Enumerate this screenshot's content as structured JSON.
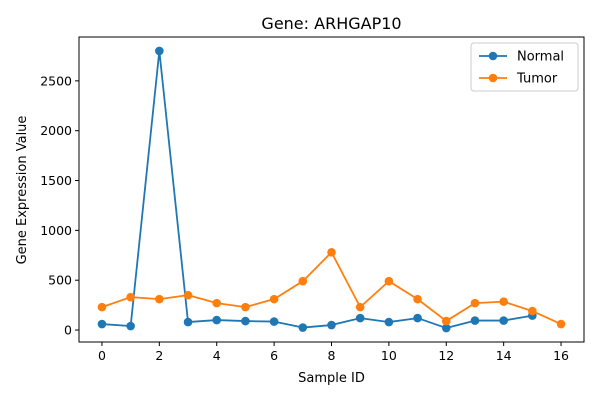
{
  "chart_data": {
    "type": "line",
    "title": "Gene: ARHGAP10",
    "xlabel": "Sample ID",
    "ylabel": "Gene Expression Value",
    "xlim": [
      -0.8,
      16.8
    ],
    "ylim": [
      -120,
      2940
    ],
    "xticks": [
      0,
      2,
      4,
      6,
      8,
      10,
      12,
      14,
      16
    ],
    "yticks": [
      0,
      500,
      1000,
      1500,
      2000,
      2500
    ],
    "grid": false,
    "legend_position": "top-right",
    "series": [
      {
        "name": "Normal",
        "color": "#1f77b4",
        "x": [
          0,
          1,
          2,
          3,
          4,
          5,
          6,
          7,
          8,
          9,
          10,
          11,
          12,
          13,
          14,
          15
        ],
        "y": [
          60,
          40,
          2800,
          80,
          100,
          90,
          85,
          25,
          50,
          120,
          80,
          120,
          20,
          95,
          95,
          145
        ]
      },
      {
        "name": "Tumor",
        "color": "#ff7f0e",
        "x": [
          0,
          1,
          2,
          3,
          4,
          5,
          6,
          7,
          8,
          9,
          10,
          11,
          12,
          13,
          14,
          15,
          16
        ],
        "y": [
          230,
          330,
          310,
          350,
          270,
          230,
          310,
          490,
          780,
          230,
          490,
          310,
          90,
          270,
          285,
          190,
          60
        ]
      }
    ]
  }
}
